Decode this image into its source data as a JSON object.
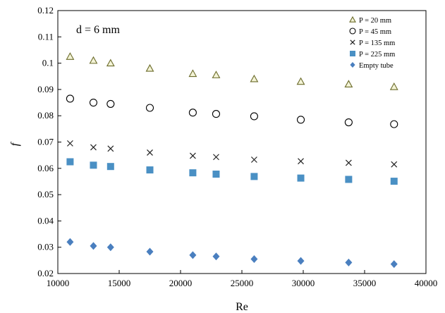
{
  "chart_data": {
    "type": "scatter",
    "title": "",
    "annotation": "d = 6 mm",
    "xlabel": "Re",
    "ylabel": "f",
    "xlim": [
      10000,
      40000
    ],
    "ylim": [
      0.02,
      0.12
    ],
    "xticks": [
      10000,
      15000,
      20000,
      25000,
      30000,
      35000,
      40000
    ],
    "yticks": [
      0.02,
      0.03,
      0.04,
      0.05,
      0.06,
      0.07,
      0.08,
      0.09,
      0.1,
      0.11,
      0.12
    ],
    "grid": false,
    "legend_position": "top-right",
    "x": [
      11000,
      12900,
      14300,
      17500,
      21000,
      22900,
      26000,
      29800,
      33700,
      37400
    ],
    "series": [
      {
        "name": "P = 20 mm",
        "marker": "triangle-open",
        "color": "#6b6b2a",
        "values": [
          0.1025,
          0.101,
          0.1,
          0.098,
          0.096,
          0.0955,
          0.094,
          0.093,
          0.092,
          0.091
        ]
      },
      {
        "name": "P = 45 mm",
        "marker": "circle-open",
        "color": "#000000",
        "values": [
          0.0865,
          0.085,
          0.0845,
          0.083,
          0.0812,
          0.0807,
          0.0798,
          0.0785,
          0.0775,
          0.0768
        ]
      },
      {
        "name": "P = 135 mm",
        "marker": "x",
        "color": "#222222",
        "values": [
          0.0695,
          0.068,
          0.0675,
          0.066,
          0.0648,
          0.0643,
          0.0633,
          0.0627,
          0.0621,
          0.0615
        ]
      },
      {
        "name": "P = 225 mm",
        "marker": "square",
        "color": "#4a90c4",
        "values": [
          0.0625,
          0.0612,
          0.0607,
          0.0594,
          0.0583,
          0.0578,
          0.0569,
          0.0563,
          0.0558,
          0.0551
        ]
      },
      {
        "name": "Empty tube",
        "marker": "diamond",
        "color": "#4a7fbf",
        "values": [
          0.032,
          0.0305,
          0.03,
          0.0283,
          0.027,
          0.0265,
          0.0255,
          0.0248,
          0.0242,
          0.0236
        ]
      }
    ]
  }
}
